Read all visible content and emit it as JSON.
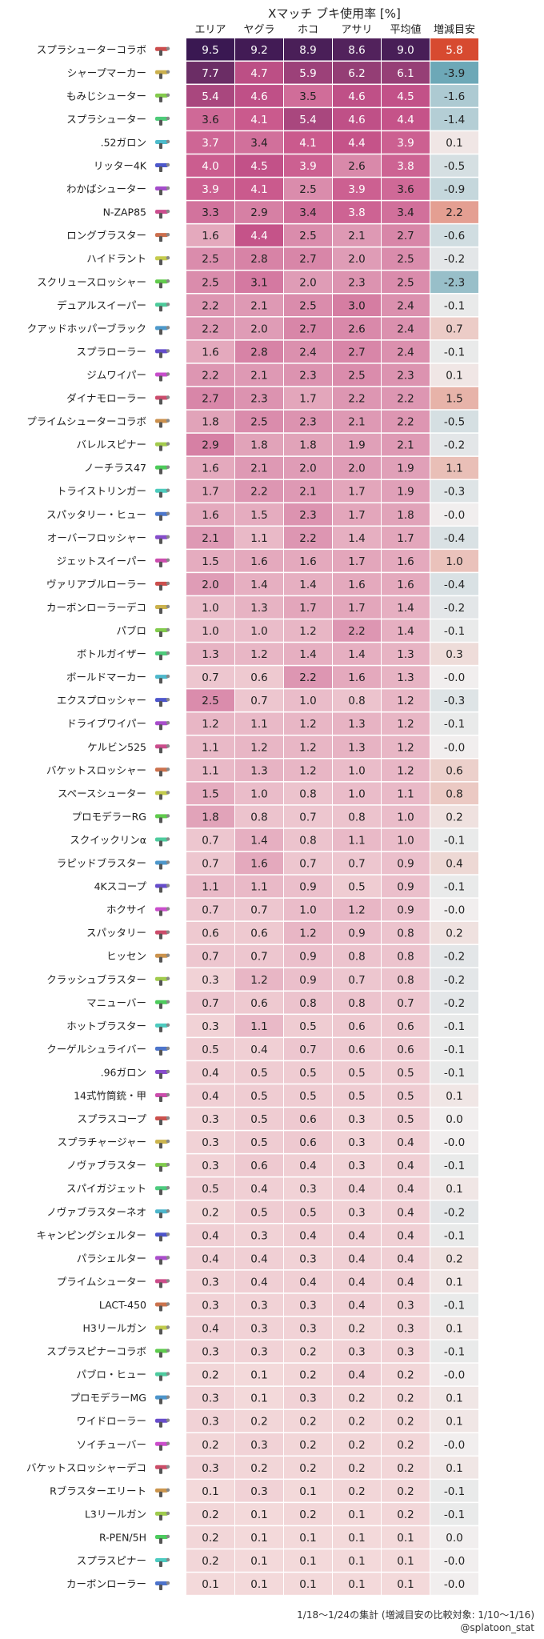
{
  "chart_data": {
    "type": "heatmap",
    "title": "Xマッチ ブキ使用率 [%]",
    "columns": [
      "エリア",
      "ヤグラ",
      "ホコ",
      "アサリ",
      "平均値",
      "増減目安"
    ],
    "rows": [
      {
        "name": "スプラシューターコラボ",
        "values": [
          9.5,
          9.2,
          8.9,
          8.6,
          9.0,
          5.8
        ],
        "icon": "splattershot-collab-icon"
      },
      {
        "name": "シャープマーカー",
        "values": [
          7.7,
          4.7,
          5.9,
          6.2,
          6.1,
          -3.9
        ],
        "icon": "splash-o-matic-icon"
      },
      {
        "name": "もみじシューター",
        "values": [
          5.4,
          4.6,
          3.5,
          4.6,
          4.5,
          -1.6
        ],
        "icon": "custom-splattershot-jr-icon"
      },
      {
        "name": "スプラシューター",
        "values": [
          3.6,
          4.1,
          5.4,
          4.6,
          4.4,
          -1.4
        ],
        "icon": "splattershot-icon"
      },
      {
        "name": ".52ガロン",
        "values": [
          3.7,
          3.4,
          4.1,
          4.4,
          3.9,
          0.1
        ],
        "icon": "52-gal-icon"
      },
      {
        "name": "リッター4K",
        "values": [
          4.0,
          4.5,
          3.9,
          2.6,
          3.8,
          -0.5
        ],
        "icon": "e-liter-4k-icon"
      },
      {
        "name": "わかばシューター",
        "values": [
          3.9,
          4.1,
          2.5,
          3.9,
          3.6,
          -0.9
        ],
        "icon": "splattershot-jr-icon"
      },
      {
        "name": "N-ZAP85",
        "values": [
          3.3,
          2.9,
          3.4,
          3.8,
          3.4,
          2.2
        ],
        "icon": "n-zap-85-icon"
      },
      {
        "name": "ロングブラスター",
        "values": [
          1.6,
          4.4,
          2.5,
          2.1,
          2.7,
          -0.6
        ],
        "icon": "range-blaster-icon"
      },
      {
        "name": "ハイドラント",
        "values": [
          2.5,
          2.8,
          2.7,
          2.0,
          2.5,
          -0.2
        ],
        "icon": "hydra-splatling-icon"
      },
      {
        "name": "スクリュースロッシャー",
        "values": [
          2.5,
          3.1,
          2.0,
          2.3,
          2.5,
          -2.3
        ],
        "icon": "sloshing-machine-icon"
      },
      {
        "name": "デュアルスイーパー",
        "values": [
          2.2,
          2.1,
          2.5,
          3.0,
          2.4,
          -0.1
        ],
        "icon": "dualie-squelchers-icon"
      },
      {
        "name": "クアッドホッパーブラック",
        "values": [
          2.2,
          2.0,
          2.7,
          2.6,
          2.4,
          0.7
        ],
        "icon": "dark-tetra-dualies-icon"
      },
      {
        "name": "スプラローラー",
        "values": [
          1.6,
          2.8,
          2.4,
          2.7,
          2.4,
          -0.1
        ],
        "icon": "splat-roller-icon"
      },
      {
        "name": "ジムワイパー",
        "values": [
          2.2,
          2.1,
          2.3,
          2.5,
          2.3,
          0.1
        ],
        "icon": "splatana-wiper-icon"
      },
      {
        "name": "ダイナモローラー",
        "values": [
          2.7,
          2.3,
          1.7,
          2.2,
          2.2,
          1.5
        ],
        "icon": "dynamo-roller-icon"
      },
      {
        "name": "プライムシューターコラボ",
        "values": [
          1.8,
          2.5,
          2.3,
          2.1,
          2.2,
          -0.5
        ],
        "icon": "splattershot-pro-collab-icon"
      },
      {
        "name": "バレルスピナー",
        "values": [
          2.9,
          1.8,
          1.8,
          1.9,
          2.1,
          -0.2
        ],
        "icon": "heavy-splatling-icon"
      },
      {
        "name": "ノーチラス47",
        "values": [
          1.6,
          2.1,
          2.0,
          2.0,
          1.9,
          1.1
        ],
        "icon": "nautilus-47-icon"
      },
      {
        "name": "トライストリンガー",
        "values": [
          1.7,
          2.2,
          2.1,
          1.7,
          1.9,
          -0.3
        ],
        "icon": "tri-stringer-icon"
      },
      {
        "name": "スパッタリー・ヒュー",
        "values": [
          1.6,
          1.5,
          2.3,
          1.7,
          1.8,
          -0.0
        ],
        "icon": "dapple-dualies-nouveau-icon"
      },
      {
        "name": "オーバーフロッシャー",
        "values": [
          2.1,
          1.1,
          2.2,
          1.4,
          1.7,
          -0.4
        ],
        "icon": "bloblobber-icon"
      },
      {
        "name": "ジェットスイーパー",
        "values": [
          1.5,
          1.6,
          1.6,
          1.7,
          1.6,
          1.0
        ],
        "icon": "jet-squelcher-icon"
      },
      {
        "name": "ヴァリアブルローラー",
        "values": [
          2.0,
          1.4,
          1.4,
          1.6,
          1.6,
          -0.4
        ],
        "icon": "flingza-roller-icon"
      },
      {
        "name": "カーボンローラーデコ",
        "values": [
          1.0,
          1.3,
          1.7,
          1.7,
          1.4,
          -0.2
        ],
        "icon": "carbon-roller-deco-icon"
      },
      {
        "name": "パブロ",
        "values": [
          1.0,
          1.0,
          1.2,
          2.2,
          1.4,
          -0.1
        ],
        "icon": "inkbrush-icon"
      },
      {
        "name": "ボトルガイザー",
        "values": [
          1.3,
          1.2,
          1.4,
          1.4,
          1.3,
          0.3
        ],
        "icon": "squeezer-icon"
      },
      {
        "name": "ボールドマーカー",
        "values": [
          0.7,
          0.6,
          2.2,
          1.6,
          1.3,
          -0.0
        ],
        "icon": "sploosh-o-matic-icon"
      },
      {
        "name": "エクスプロッシャー",
        "values": [
          2.5,
          0.7,
          1.0,
          0.8,
          1.2,
          -0.3
        ],
        "icon": "explosher-icon"
      },
      {
        "name": "ドライブワイパー",
        "values": [
          1.2,
          1.1,
          1.2,
          1.3,
          1.2,
          -0.1
        ],
        "icon": "splatana-stamper-icon"
      },
      {
        "name": "ケルビン525",
        "values": [
          1.1,
          1.2,
          1.2,
          1.3,
          1.2,
          -0.0
        ],
        "icon": "glooga-dualies-icon"
      },
      {
        "name": "バケットスロッシャー",
        "values": [
          1.1,
          1.3,
          1.2,
          1.0,
          1.2,
          0.6
        ],
        "icon": "slosher-icon"
      },
      {
        "name": "スペースシューター",
        "values": [
          1.5,
          1.0,
          0.8,
          1.0,
          1.1,
          0.8
        ],
        "icon": "splattershot-nova-icon"
      },
      {
        "name": "プロモデラーRG",
        "values": [
          1.8,
          0.8,
          0.7,
          0.8,
          1.0,
          0.2
        ],
        "icon": "aerospray-rg-icon"
      },
      {
        "name": "スクイックリンα",
        "values": [
          0.7,
          1.4,
          0.8,
          1.1,
          1.0,
          -0.1
        ],
        "icon": "classic-squiffer-icon"
      },
      {
        "name": "ラピッドブラスター",
        "values": [
          0.7,
          1.6,
          0.7,
          0.7,
          0.9,
          0.4
        ],
        "icon": "rapid-blaster-icon"
      },
      {
        "name": "4Kスコープ",
        "values": [
          1.1,
          1.1,
          0.9,
          0.5,
          0.9,
          -0.1
        ],
        "icon": "e-liter-4k-scope-icon"
      },
      {
        "name": "ホクサイ",
        "values": [
          0.7,
          0.7,
          1.0,
          1.2,
          0.9,
          -0.0
        ],
        "icon": "octobrush-icon"
      },
      {
        "name": "スパッタリー",
        "values": [
          0.6,
          0.6,
          1.2,
          0.9,
          0.8,
          0.2
        ],
        "icon": "dapple-dualies-icon"
      },
      {
        "name": "ヒッセン",
        "values": [
          0.7,
          0.7,
          0.9,
          0.8,
          0.8,
          -0.2
        ],
        "icon": "tri-slosher-icon"
      },
      {
        "name": "クラッシュブラスター",
        "values": [
          0.3,
          1.2,
          0.9,
          0.7,
          0.8,
          -0.2
        ],
        "icon": "clash-blaster-icon"
      },
      {
        "name": "マニューバー",
        "values": [
          0.7,
          0.6,
          0.8,
          0.8,
          0.7,
          -0.2
        ],
        "icon": "splat-dualies-icon"
      },
      {
        "name": "ホットブラスター",
        "values": [
          0.3,
          1.1,
          0.5,
          0.6,
          0.6,
          -0.1
        ],
        "icon": "blaster-icon"
      },
      {
        "name": "クーゲルシュライバー",
        "values": [
          0.5,
          0.4,
          0.7,
          0.6,
          0.6,
          -0.1
        ],
        "icon": "ballpoint-splatling-icon"
      },
      {
        "name": ".96ガロン",
        "values": [
          0.4,
          0.5,
          0.5,
          0.5,
          0.5,
          -0.1
        ],
        "icon": "96-gal-icon"
      },
      {
        "name": "14式竹筒銃・甲",
        "values": [
          0.4,
          0.5,
          0.5,
          0.5,
          0.5,
          0.1
        ],
        "icon": "bamboozler-14-mk-i-icon"
      },
      {
        "name": "スプラスコープ",
        "values": [
          0.3,
          0.5,
          0.6,
          0.3,
          0.5,
          0.0
        ],
        "icon": "splatterscope-icon"
      },
      {
        "name": "スプラチャージャー",
        "values": [
          0.3,
          0.5,
          0.6,
          0.3,
          0.4,
          -0.0
        ],
        "icon": "splat-charger-icon"
      },
      {
        "name": "ノヴァブラスター",
        "values": [
          0.3,
          0.6,
          0.4,
          0.3,
          0.4,
          -0.1
        ],
        "icon": "luna-blaster-icon"
      },
      {
        "name": "スパイガジェット",
        "values": [
          0.5,
          0.4,
          0.3,
          0.4,
          0.4,
          0.1
        ],
        "icon": "undercover-brella-icon"
      },
      {
        "name": "ノヴァブラスターネオ",
        "values": [
          0.2,
          0.5,
          0.5,
          0.3,
          0.4,
          -0.2
        ],
        "icon": "luna-blaster-neo-icon"
      },
      {
        "name": "キャンピングシェルター",
        "values": [
          0.4,
          0.3,
          0.4,
          0.4,
          0.4,
          -0.1
        ],
        "icon": "tenta-brella-icon"
      },
      {
        "name": "パラシェルター",
        "values": [
          0.4,
          0.4,
          0.3,
          0.4,
          0.4,
          0.2
        ],
        "icon": "splat-brella-icon"
      },
      {
        "name": "プライムシューター",
        "values": [
          0.3,
          0.4,
          0.4,
          0.4,
          0.4,
          0.1
        ],
        "icon": "splattershot-pro-icon"
      },
      {
        "name": "LACT-450",
        "values": [
          0.3,
          0.3,
          0.3,
          0.4,
          0.3,
          -0.1
        ],
        "icon": "reef-lux-450-icon"
      },
      {
        "name": "H3リールガン",
        "values": [
          0.4,
          0.3,
          0.3,
          0.2,
          0.3,
          0.1
        ],
        "icon": "h-3-nozzlenose-icon"
      },
      {
        "name": "スプラスピナーコラボ",
        "values": [
          0.3,
          0.3,
          0.2,
          0.3,
          0.3,
          -0.1
        ],
        "icon": "mini-splatling-collab-icon"
      },
      {
        "name": "パブロ・ヒュー",
        "values": [
          0.2,
          0.1,
          0.2,
          0.4,
          0.2,
          -0.0
        ],
        "icon": "inkbrush-nouveau-icon"
      },
      {
        "name": "プロモデラーMG",
        "values": [
          0.3,
          0.1,
          0.3,
          0.2,
          0.2,
          0.1
        ],
        "icon": "aerospray-mg-icon"
      },
      {
        "name": "ワイドローラー",
        "values": [
          0.3,
          0.2,
          0.2,
          0.2,
          0.2,
          0.1
        ],
        "icon": "big-swig-roller-icon"
      },
      {
        "name": "ソイチューバー",
        "values": [
          0.2,
          0.3,
          0.2,
          0.2,
          0.2,
          -0.0
        ],
        "icon": "goo-tuber-icon"
      },
      {
        "name": "バケットスロッシャーデコ",
        "values": [
          0.3,
          0.2,
          0.2,
          0.2,
          0.2,
          0.1
        ],
        "icon": "slosher-deco-icon"
      },
      {
        "name": "Rブラスターエリート",
        "values": [
          0.1,
          0.3,
          0.1,
          0.2,
          0.2,
          -0.1
        ],
        "icon": "rapid-blaster-pro-icon"
      },
      {
        "name": "L3リールガン",
        "values": [
          0.2,
          0.1,
          0.2,
          0.1,
          0.2,
          -0.1
        ],
        "icon": "l-3-nozzlenose-icon"
      },
      {
        "name": "R-PEN/5H",
        "values": [
          0.2,
          0.1,
          0.1,
          0.1,
          0.1,
          0.0
        ],
        "icon": "snipewriter-5h-icon"
      },
      {
        "name": "スプラスピナー",
        "values": [
          0.2,
          0.1,
          0.1,
          0.1,
          0.1,
          -0.0
        ],
        "icon": "mini-splatling-icon"
      },
      {
        "name": "カーボンローラー",
        "values": [
          0.1,
          0.1,
          0.1,
          0.1,
          0.1,
          -0.0
        ],
        "icon": "carbon-roller-icon"
      }
    ],
    "usage_scale": {
      "min": 0,
      "max": 9.5,
      "low_color": "#f4dcdc",
      "mid_color": "#c8548a",
      "high_color": "#3a1852"
    },
    "change_scale": {
      "min": -4,
      "max": 6,
      "neg_color": "#6aa7b6",
      "zero_color": "#f1eeee",
      "pos_color": "#d6462b"
    },
    "footnote": "1/18〜1/24の集計 (増減目安の比較対象: 1/10〜1/16)",
    "credit": "@splatoon_stat",
    "grid": false,
    "legend": "none"
  }
}
